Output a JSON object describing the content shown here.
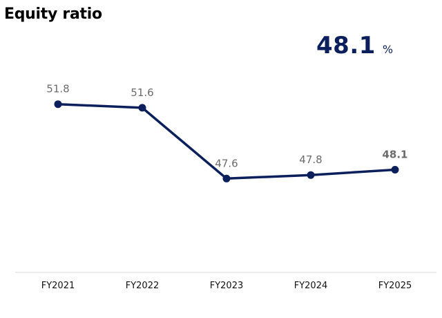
{
  "title": "Equity ratio",
  "headline": {
    "value": "48.1",
    "unit": "%"
  },
  "colors": {
    "series": "#0b1f5c",
    "data_label": "#6b6b6b",
    "axis": "#d9d9d9",
    "headline": "#0b1f5c"
  },
  "chart_data": {
    "type": "line",
    "title": "Equity ratio",
    "xlabel": "",
    "ylabel": "",
    "categories": [
      "FY2021",
      "FY2022",
      "FY2023",
      "FY2024",
      "FY2025"
    ],
    "series": [
      {
        "values": [
          51.8,
          51.6,
          47.6,
          47.8,
          48.1
        ],
        "data_labels": [
          "51.8",
          "51.6",
          "47.6",
          "47.8",
          "48.1"
        ]
      }
    ],
    "ylim": [
      42.3,
      55.5
    ],
    "grid": false,
    "legend": "none",
    "highlighted_point": "last"
  }
}
